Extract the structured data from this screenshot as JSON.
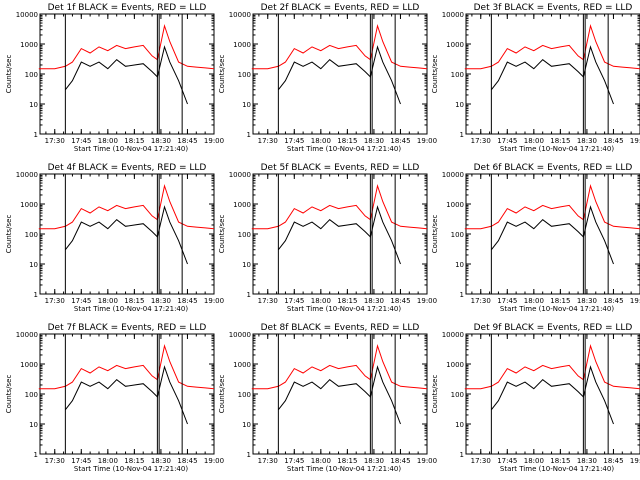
{
  "figure": {
    "xlabel": "Start Time (10-Nov-04 17:21:40)",
    "ylabel": "Counts/sec"
  },
  "colors": {
    "black_series": "#000000",
    "red_series": "#ff0000",
    "axes": "#000000",
    "background": "#ffffff"
  },
  "chart_data": [
    {
      "type": "line",
      "title": "Det 1f BLACK = Events, RED = LLD",
      "xlabel": "Start Time (10-Nov-04 17:21:40)",
      "ylabel": "Counts/sec",
      "xlim": [
        "17:21:40",
        "19:00"
      ],
      "yscale": "log",
      "ylim": [
        1,
        10000
      ],
      "x_ticks": [
        "17:30",
        "17:45",
        "18:00",
        "18:15",
        "18:30",
        "18:45",
        "19:00"
      ],
      "y_ticks": [
        "1",
        "10",
        "100",
        "1000",
        "10000"
      ],
      "x": [
        "17:21",
        "17:30",
        "17:36",
        "17:40",
        "17:45",
        "17:50",
        "17:55",
        "18:00",
        "18:05",
        "18:10",
        "18:15",
        "18:20",
        "18:25",
        "18:28",
        "18:32",
        "18:35",
        "18:40",
        "18:45",
        "18:50",
        "18:55",
        "19:00"
      ],
      "series": [
        {
          "name": "RED = LLD",
          "values": [
            150,
            150,
            180,
            250,
            700,
            500,
            800,
            600,
            900,
            700,
            800,
            900,
            400,
            300,
            4000,
            1200,
            250,
            180,
            170,
            160,
            150
          ]
        },
        {
          "name": "BLACK = Events",
          "values": [
            null,
            null,
            30,
            60,
            250,
            180,
            250,
            150,
            300,
            180,
            200,
            220,
            120,
            80,
            800,
            250,
            60,
            10,
            null,
            null,
            null
          ]
        }
      ]
    },
    {
      "type": "line",
      "title": "Det 2f BLACK = Events, RED = LLD",
      "xlabel": "Start Time (10-Nov-04 17:21:40)",
      "ylabel": "Counts/sec",
      "xlim": [
        "17:21:40",
        "19:00"
      ],
      "yscale": "log",
      "ylim": [
        1,
        10000
      ],
      "x_ticks": [
        "17:30",
        "17:45",
        "18:00",
        "18:15",
        "18:30",
        "18:45",
        "19:00"
      ],
      "y_ticks": [
        "1",
        "10",
        "100",
        "1000",
        "10000"
      ],
      "x": [
        "17:21",
        "17:30",
        "17:36",
        "17:40",
        "17:45",
        "17:50",
        "17:55",
        "18:00",
        "18:05",
        "18:10",
        "18:15",
        "18:20",
        "18:25",
        "18:28",
        "18:32",
        "18:35",
        "18:40",
        "18:45",
        "18:50",
        "18:55",
        "19:00"
      ],
      "series": [
        {
          "name": "RED = LLD",
          "values": [
            150,
            150,
            180,
            250,
            700,
            500,
            800,
            600,
            900,
            700,
            800,
            900,
            400,
            300,
            4000,
            1200,
            250,
            180,
            170,
            160,
            150
          ]
        },
        {
          "name": "BLACK = Events",
          "values": [
            null,
            null,
            30,
            60,
            250,
            180,
            250,
            150,
            300,
            180,
            200,
            220,
            120,
            80,
            800,
            250,
            60,
            10,
            null,
            null,
            null
          ]
        }
      ]
    },
    {
      "type": "line",
      "title": "Det 3f BLACK = Events, RED = LLD",
      "xlabel": "Start Time (10-Nov-04 17:21:40)",
      "ylabel": "Counts/sec",
      "xlim": [
        "17:21:40",
        "19:00"
      ],
      "yscale": "log",
      "ylim": [
        1,
        10000
      ],
      "x_ticks": [
        "17:30",
        "17:45",
        "18:00",
        "18:15",
        "18:30",
        "18:45",
        "19:00"
      ],
      "y_ticks": [
        "1",
        "10",
        "100",
        "1000",
        "10000"
      ],
      "x": [
        "17:21",
        "17:30",
        "17:36",
        "17:40",
        "17:45",
        "17:50",
        "17:55",
        "18:00",
        "18:05",
        "18:10",
        "18:15",
        "18:20",
        "18:25",
        "18:28",
        "18:32",
        "18:35",
        "18:40",
        "18:45",
        "18:50",
        "18:55",
        "19:00"
      ],
      "series": [
        {
          "name": "RED = LLD",
          "values": [
            150,
            150,
            180,
            250,
            700,
            500,
            800,
            600,
            900,
            700,
            800,
            900,
            400,
            300,
            4000,
            1200,
            250,
            180,
            170,
            160,
            150
          ]
        },
        {
          "name": "BLACK = Events",
          "values": [
            null,
            null,
            30,
            60,
            250,
            180,
            250,
            150,
            300,
            180,
            200,
            220,
            120,
            80,
            800,
            250,
            60,
            10,
            null,
            null,
            null
          ]
        }
      ]
    },
    {
      "type": "line",
      "title": "Det 4f BLACK = Events, RED = LLD",
      "xlabel": "Start Time (10-Nov-04 17:21:40)",
      "ylabel": "Counts/sec",
      "xlim": [
        "17:21:40",
        "19:00"
      ],
      "yscale": "log",
      "ylim": [
        1,
        10000
      ],
      "x_ticks": [
        "17:30",
        "17:45",
        "18:00",
        "18:15",
        "18:30",
        "18:45",
        "19:00"
      ],
      "y_ticks": [
        "1",
        "10",
        "100",
        "1000",
        "10000"
      ],
      "x": [
        "17:21",
        "17:30",
        "17:36",
        "17:40",
        "17:45",
        "17:50",
        "17:55",
        "18:00",
        "18:05",
        "18:10",
        "18:15",
        "18:20",
        "18:25",
        "18:28",
        "18:32",
        "18:35",
        "18:40",
        "18:45",
        "18:50",
        "18:55",
        "19:00"
      ],
      "series": [
        {
          "name": "RED = LLD",
          "values": [
            150,
            150,
            180,
            250,
            700,
            500,
            800,
            600,
            900,
            700,
            800,
            900,
            400,
            300,
            4000,
            1200,
            250,
            180,
            170,
            160,
            150
          ]
        },
        {
          "name": "BLACK = Events",
          "values": [
            null,
            null,
            30,
            60,
            250,
            180,
            250,
            150,
            300,
            180,
            200,
            220,
            120,
            80,
            800,
            250,
            60,
            10,
            null,
            null,
            null
          ]
        }
      ]
    },
    {
      "type": "line",
      "title": "Det 5f BLACK = Events, RED = LLD",
      "xlabel": "Start Time (10-Nov-04 17:21:40)",
      "ylabel": "Counts/sec",
      "xlim": [
        "17:21:40",
        "19:00"
      ],
      "yscale": "log",
      "ylim": [
        1,
        10000
      ],
      "x_ticks": [
        "17:30",
        "17:45",
        "18:00",
        "18:15",
        "18:30",
        "18:45",
        "19:00"
      ],
      "y_ticks": [
        "1",
        "10",
        "100",
        "1000",
        "10000"
      ],
      "x": [
        "17:21",
        "17:30",
        "17:36",
        "17:40",
        "17:45",
        "17:50",
        "17:55",
        "18:00",
        "18:05",
        "18:10",
        "18:15",
        "18:20",
        "18:25",
        "18:28",
        "18:32",
        "18:35",
        "18:40",
        "18:45",
        "18:50",
        "18:55",
        "19:00"
      ],
      "series": [
        {
          "name": "RED = LLD",
          "values": [
            150,
            150,
            180,
            250,
            700,
            500,
            800,
            600,
            900,
            700,
            800,
            900,
            400,
            300,
            4000,
            1200,
            250,
            180,
            170,
            160,
            150
          ]
        },
        {
          "name": "BLACK = Events",
          "values": [
            null,
            null,
            30,
            60,
            250,
            180,
            250,
            150,
            300,
            180,
            200,
            220,
            120,
            80,
            800,
            250,
            60,
            10,
            null,
            null,
            null
          ]
        }
      ]
    },
    {
      "type": "line",
      "title": "Det 6f BLACK = Events, RED = LLD",
      "xlabel": "Start Time (10-Nov-04 17:21:40)",
      "ylabel": "Counts/sec",
      "xlim": [
        "17:21:40",
        "19:00"
      ],
      "yscale": "log",
      "ylim": [
        1,
        10000
      ],
      "x_ticks": [
        "17:30",
        "17:45",
        "18:00",
        "18:15",
        "18:30",
        "18:45",
        "19:00"
      ],
      "y_ticks": [
        "1",
        "10",
        "100",
        "1000",
        "10000"
      ],
      "x": [
        "17:21",
        "17:30",
        "17:36",
        "17:40",
        "17:45",
        "17:50",
        "17:55",
        "18:00",
        "18:05",
        "18:10",
        "18:15",
        "18:20",
        "18:25",
        "18:28",
        "18:32",
        "18:35",
        "18:40",
        "18:45",
        "18:50",
        "18:55",
        "19:00"
      ],
      "series": [
        {
          "name": "RED = LLD",
          "values": [
            150,
            150,
            180,
            250,
            700,
            500,
            800,
            600,
            900,
            700,
            800,
            900,
            400,
            300,
            4000,
            1200,
            250,
            180,
            170,
            160,
            150
          ]
        },
        {
          "name": "BLACK = Events",
          "values": [
            null,
            null,
            30,
            60,
            250,
            180,
            250,
            150,
            300,
            180,
            200,
            220,
            120,
            80,
            800,
            250,
            60,
            10,
            null,
            null,
            null
          ]
        }
      ]
    },
    {
      "type": "line",
      "title": "Det 7f BLACK = Events, RED = LLD",
      "xlabel": "Start Time (10-Nov-04 17:21:40)",
      "ylabel": "Counts/sec",
      "xlim": [
        "17:21:40",
        "19:00"
      ],
      "yscale": "log",
      "ylim": [
        1,
        10000
      ],
      "x_ticks": [
        "17:30",
        "17:45",
        "18:00",
        "18:15",
        "18:30",
        "18:45",
        "19:00"
      ],
      "y_ticks": [
        "1",
        "10",
        "100",
        "1000",
        "10000"
      ],
      "x": [
        "17:21",
        "17:30",
        "17:36",
        "17:40",
        "17:45",
        "17:50",
        "17:55",
        "18:00",
        "18:05",
        "18:10",
        "18:15",
        "18:20",
        "18:25",
        "18:28",
        "18:32",
        "18:35",
        "18:40",
        "18:45",
        "18:50",
        "18:55",
        "19:00"
      ],
      "series": [
        {
          "name": "RED = LLD",
          "values": [
            150,
            150,
            180,
            250,
            700,
            500,
            800,
            600,
            900,
            700,
            800,
            900,
            400,
            300,
            4000,
            1200,
            250,
            180,
            170,
            160,
            150
          ]
        },
        {
          "name": "BLACK = Events",
          "values": [
            null,
            null,
            30,
            60,
            250,
            180,
            250,
            150,
            300,
            180,
            200,
            220,
            120,
            80,
            800,
            250,
            60,
            10,
            null,
            null,
            null
          ]
        }
      ]
    },
    {
      "type": "line",
      "title": "Det 8f BLACK = Events, RED = LLD",
      "xlabel": "Start Time (10-Nov-04 17:21:40)",
      "ylabel": "Counts/sec",
      "xlim": [
        "17:21:40",
        "19:00"
      ],
      "yscale": "log",
      "ylim": [
        1,
        10000
      ],
      "x_ticks": [
        "17:30",
        "17:45",
        "18:00",
        "18:15",
        "18:30",
        "18:45",
        "19:00"
      ],
      "y_ticks": [
        "1",
        "10",
        "100",
        "1000",
        "10000"
      ],
      "x": [
        "17:21",
        "17:30",
        "17:36",
        "17:40",
        "17:45",
        "17:50",
        "17:55",
        "18:00",
        "18:05",
        "18:10",
        "18:15",
        "18:20",
        "18:25",
        "18:28",
        "18:32",
        "18:35",
        "18:40",
        "18:45",
        "18:50",
        "18:55",
        "19:00"
      ],
      "series": [
        {
          "name": "RED = LLD",
          "values": [
            150,
            150,
            180,
            250,
            700,
            500,
            800,
            600,
            900,
            700,
            800,
            900,
            400,
            300,
            4000,
            1200,
            250,
            180,
            170,
            160,
            150
          ]
        },
        {
          "name": "BLACK = Events",
          "values": [
            null,
            null,
            30,
            60,
            250,
            180,
            250,
            150,
            300,
            180,
            200,
            220,
            120,
            80,
            800,
            250,
            60,
            10,
            null,
            null,
            null
          ]
        }
      ]
    },
    {
      "type": "line",
      "title": "Det 9f BLACK = Events, RED = LLD",
      "xlabel": "Start Time (10-Nov-04 17:21:40)",
      "ylabel": "Counts/sec",
      "xlim": [
        "17:21:40",
        "19:00"
      ],
      "yscale": "log",
      "ylim": [
        1,
        10000
      ],
      "x_ticks": [
        "17:30",
        "17:45",
        "18:00",
        "18:15",
        "18:30",
        "18:45",
        "19:00"
      ],
      "y_ticks": [
        "1",
        "10",
        "100",
        "1000",
        "10000"
      ],
      "x": [
        "17:21",
        "17:30",
        "17:36",
        "17:40",
        "17:45",
        "17:50",
        "17:55",
        "18:00",
        "18:05",
        "18:10",
        "18:15",
        "18:20",
        "18:25",
        "18:28",
        "18:32",
        "18:35",
        "18:40",
        "18:45",
        "18:50",
        "18:55",
        "19:00"
      ],
      "series": [
        {
          "name": "RED = LLD",
          "values": [
            150,
            150,
            180,
            250,
            700,
            500,
            800,
            600,
            900,
            700,
            800,
            900,
            400,
            300,
            4000,
            1200,
            250,
            180,
            170,
            160,
            150
          ]
        },
        {
          "name": "BLACK = Events",
          "values": [
            null,
            null,
            30,
            60,
            250,
            180,
            250,
            150,
            300,
            180,
            200,
            220,
            120,
            80,
            800,
            250,
            60,
            10,
            null,
            null,
            null
          ]
        }
      ]
    }
  ]
}
